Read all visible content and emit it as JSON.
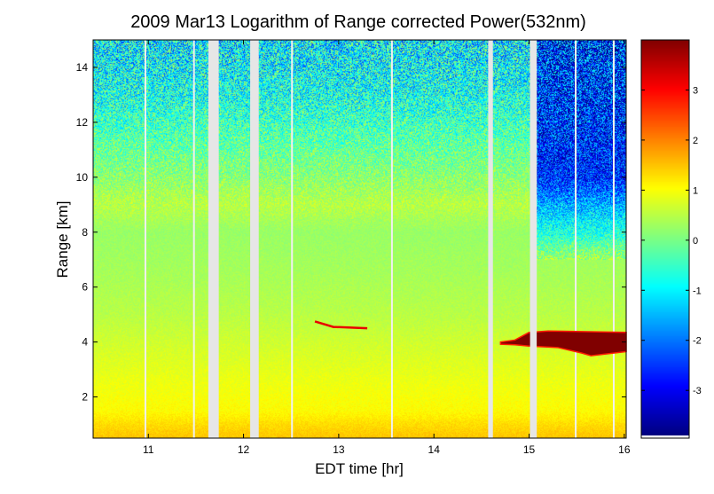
{
  "chart_data": {
    "type": "heatmap",
    "title": "2009 Mar13  Logarithm of Range corrected Power(532nm)",
    "xlabel": "EDT time [hr]",
    "ylabel": "Range [km]",
    "xlim": [
      10.42,
      16.02
    ],
    "ylim": [
      0.5,
      15.0
    ],
    "xticks": [
      "11",
      "12",
      "13",
      "14",
      "15",
      "16"
    ],
    "yticks": [
      "2",
      "4",
      "6",
      "8",
      "10",
      "12",
      "14"
    ],
    "colorbar": {
      "range": [
        -3.9,
        4.0
      ],
      "ticks": [
        "3",
        "2",
        "1",
        "0",
        "-1",
        "-2",
        "-3"
      ],
      "colormap": "jet"
    },
    "data_gaps_hr": [
      [
        11.63,
        11.74
      ],
      [
        12.07,
        12.16
      ],
      [
        14.57,
        14.62
      ],
      [
        15.01,
        15.08
      ]
    ],
    "thin_gaps_hr": [
      10.96,
      11.47,
      12.5,
      13.55,
      15.48,
      15.88
    ],
    "profile_by_range_km": [
      {
        "range": 0.5,
        "value": 1.5
      },
      {
        "range": 1.0,
        "value": 1.3
      },
      {
        "range": 1.5,
        "value": 1.05
      },
      {
        "range": 2.2,
        "value": 0.95
      },
      {
        "range": 3.5,
        "value": 0.75
      },
      {
        "range": 5.0,
        "value": 0.5
      },
      {
        "range": 6.5,
        "value": 0.35
      },
      {
        "range": 8.0,
        "value": 0.25
      },
      {
        "range": 9.0,
        "value": 0.5
      },
      {
        "range": 10.0,
        "value": 0.15
      },
      {
        "range": 11.5,
        "value": -0.3
      },
      {
        "range": 13.0,
        "value": -0.8
      },
      {
        "range": 15.0,
        "value": -1.1
      }
    ],
    "clear_sky_late": {
      "start_hr": 15.08,
      "value_above_10km": -2.6
    },
    "cloud_layers": [
      {
        "name": "thin-cloud-layer",
        "time_hr": [
          12.75,
          13.3
        ],
        "range_km": [
          4.5,
          4.75
        ],
        "value": 3.2
      },
      {
        "name": "thick-cloud-layer",
        "time_hr": [
          14.7,
          16.02
        ],
        "range_km": [
          3.5,
          4.4
        ],
        "value": 4.0
      }
    ]
  }
}
